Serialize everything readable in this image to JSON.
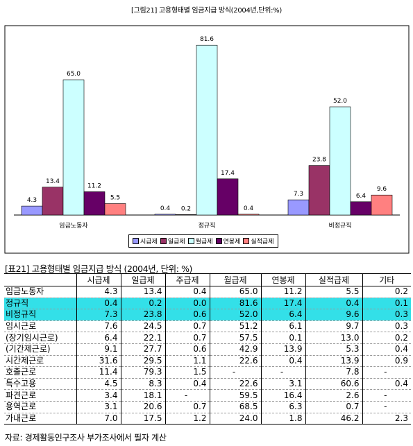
{
  "chart_data": {
    "type": "bar",
    "title": "[그림21] 고용형태별 임금지급 방식(2004년,단위:%)",
    "categories": [
      "임금노동자",
      "정규직",
      "비정규직"
    ],
    "ylim": [
      0,
      90
    ],
    "grid": false,
    "legend_position": "bottom",
    "series": [
      {
        "name": "시급제",
        "color": "#9999ff",
        "values": [
          4.3,
          0.4,
          7.3
        ],
        "labels": [
          "4.3",
          "0.4",
          "7.3"
        ]
      },
      {
        "name": "일급제",
        "color": "#993366",
        "values": [
          13.4,
          0.2,
          23.8
        ],
        "labels": [
          "13.4",
          "0.2",
          "23.8"
        ]
      },
      {
        "name": "월급제",
        "color": "#ccffff",
        "values": [
          65.0,
          81.6,
          52.0
        ],
        "labels": [
          "65.0",
          "81.6",
          "52.0"
        ]
      },
      {
        "name": "연봉제",
        "color": "#660066",
        "values": [
          11.2,
          17.4,
          6.4
        ],
        "labels": [
          "11.2",
          "17.4",
          "6.4"
        ]
      },
      {
        "name": "실적급제",
        "color": "#ff8080",
        "values": [
          5.5,
          0.4,
          9.6
        ],
        "labels": [
          "5.5",
          "0.4",
          "9.6"
        ]
      }
    ]
  },
  "table": {
    "caption": "[표21] 고용형태별 임금지급 방식 (2004년, 단위: %)",
    "headers": [
      "",
      "시급제",
      "일급제",
      "주급제",
      "월급제",
      "연봉제",
      "실적급제",
      "기타"
    ],
    "rows": [
      {
        "cells": [
          "임금노동자",
          "4.3",
          "13.4",
          "0.4",
          "65.0",
          "11.2",
          "5.5",
          "0.2"
        ],
        "highlight": false
      },
      {
        "cells": [
          "정규직",
          "0.4",
          "0.2",
          "0.0",
          "81.6",
          "17.4",
          "0.4",
          "0.1"
        ],
        "highlight": true
      },
      {
        "cells": [
          "비정규직",
          "7.3",
          "23.8",
          "0.6",
          "52.0",
          "6.4",
          "9.6",
          "0.3"
        ],
        "highlight": true
      },
      {
        "cells": [
          "임시근로",
          "7.6",
          "24.5",
          "0.7",
          "51.2",
          "6.1",
          "9.7",
          "0.3"
        ],
        "highlight": false
      },
      {
        "cells": [
          "(장기임시근로)",
          "6.4",
          "22.1",
          "0.7",
          "57.5",
          "0.1",
          "13.0",
          "0.2"
        ],
        "highlight": false
      },
      {
        "cells": [
          "(기간제근로)",
          "9.1",
          "27.7",
          "0.6",
          "42.9",
          "13.9",
          "5.3",
          "0.4"
        ],
        "highlight": false
      },
      {
        "cells": [
          "시간제근로",
          "31.6",
          "29.5",
          "1.1",
          "22.6",
          "0.4",
          "13.9",
          "0.9"
        ],
        "highlight": false
      },
      {
        "cells": [
          "호출근로",
          "11.4",
          "79.3",
          "1.5",
          "-",
          "-",
          "7.8",
          "-"
        ],
        "highlight": false
      },
      {
        "cells": [
          "특수고용",
          "4.5",
          "8.3",
          "0.4",
          "22.6",
          "3.1",
          "60.6",
          "0.4"
        ],
        "highlight": false
      },
      {
        "cells": [
          "파견근로",
          "3.4",
          "18.1",
          "-",
          "59.5",
          "16.4",
          "2.6",
          "-"
        ],
        "highlight": false
      },
      {
        "cells": [
          "용역근로",
          "3.1",
          "20.6",
          "0.7",
          "68.5",
          "6.3",
          "0.7",
          "-"
        ],
        "highlight": false
      },
      {
        "cells": [
          "가내근로",
          "7.0",
          "17.5",
          "1.2",
          "24.0",
          "1.8",
          "46.2",
          "2.3"
        ],
        "highlight": false
      }
    ],
    "source": "자료: 경제활동인구조사 부가조사에서 필자 계산"
  }
}
